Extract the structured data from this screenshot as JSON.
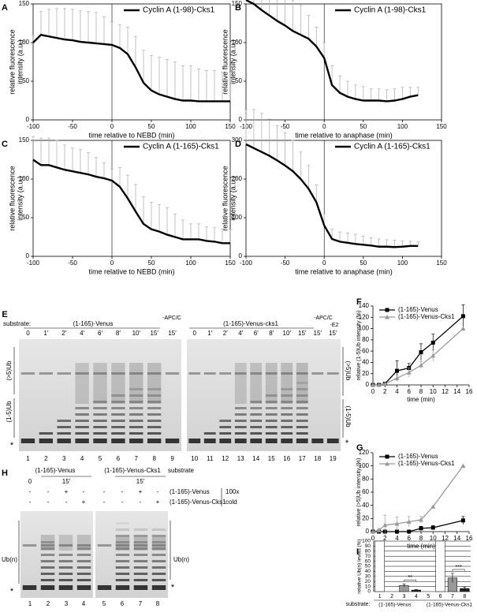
{
  "chart_data": [
    {
      "type": "line",
      "panel": "A",
      "x_label": "time relative to NEBD (min)",
      "y_label": [
        "relative fluorescence",
        "intensity (a.u.)"
      ],
      "xlim": [
        -100,
        150
      ],
      "ylim": [
        0,
        150
      ],
      "xticks": [
        -100,
        -50,
        0,
        50,
        100,
        150
      ],
      "yticks": [
        0,
        50,
        100,
        150
      ],
      "frame": true,
      "error_bars": "upper",
      "x": [
        -100,
        -90,
        -80,
        -70,
        -60,
        -50,
        -40,
        -30,
        -20,
        -10,
        0,
        10,
        20,
        30,
        40,
        50,
        60,
        70,
        80,
        90,
        100,
        110,
        120,
        130,
        140,
        150
      ],
      "series": [
        {
          "name": "Cyclin A (1-98)-Cks1",
          "color": "#000000",
          "values": [
            100,
            110,
            108,
            106,
            104,
            103,
            101,
            100,
            99,
            98,
            97,
            93,
            85,
            68,
            48,
            38,
            33,
            30,
            27,
            25,
            25,
            24,
            24,
            24,
            24,
            24
          ],
          "errors": [
            10,
            30,
            35,
            38,
            40,
            40,
            40,
            40,
            40,
            35,
            30,
            30,
            35,
            40,
            42,
            45,
            48,
            48,
            48,
            45,
            45,
            42,
            40,
            40,
            38,
            38
          ]
        }
      ]
    },
    {
      "type": "line",
      "panel": "B",
      "x_label": "time relative to anaphase (min)",
      "y_label": [
        "relative fluorescence",
        "intensity (a.u.)"
      ],
      "xlim": [
        -100,
        150
      ],
      "ylim": [
        0,
        150
      ],
      "xticks": [
        -100,
        -50,
        0,
        50,
        100,
        150
      ],
      "yticks": [
        0,
        50,
        100,
        150
      ],
      "frame": true,
      "error_bars": "upper",
      "x": [
        -100,
        -90,
        -80,
        -70,
        -60,
        -50,
        -40,
        -30,
        -20,
        -10,
        0,
        10,
        20,
        30,
        40,
        50,
        60,
        70,
        80,
        90,
        100,
        110,
        120
      ],
      "series": [
        {
          "name": "Cyclin A (1-98)-Cks1",
          "color": "#000000",
          "values": [
            155,
            150,
            142,
            135,
            128,
            122,
            115,
            110,
            105,
            95,
            80,
            45,
            35,
            30,
            27,
            25,
            25,
            25,
            24,
            25,
            27,
            30,
            32
          ],
          "errors": [
            40,
            45,
            45,
            45,
            42,
            40,
            40,
            38,
            30,
            25,
            20,
            25,
            22,
            20,
            18,
            18,
            15,
            15,
            15,
            15,
            15,
            12,
            10
          ]
        }
      ]
    },
    {
      "type": "line",
      "panel": "C",
      "x_label": "time relative to NEBD (min)",
      "y_label": [
        "relative fluorescence",
        "intensity (a.u.)"
      ],
      "xlim": [
        -100,
        150
      ],
      "ylim": [
        0,
        150
      ],
      "xticks": [
        -100,
        -50,
        0,
        50,
        100,
        150
      ],
      "yticks": [
        0,
        50,
        100,
        150
      ],
      "frame": true,
      "error_bars": "upper",
      "x": [
        -100,
        -90,
        -80,
        -70,
        -60,
        -50,
        -40,
        -30,
        -20,
        -10,
        0,
        10,
        20,
        30,
        40,
        50,
        60,
        70,
        80,
        90,
        100,
        110,
        120,
        130,
        140,
        150
      ],
      "series": [
        {
          "name": "Cyclin A (1-165)-Cks1",
          "color": "#000000",
          "values": [
            125,
            118,
            118,
            115,
            112,
            110,
            108,
            106,
            103,
            101,
            98,
            90,
            75,
            58,
            42,
            35,
            32,
            28,
            25,
            22,
            22,
            22,
            20,
            19,
            17,
            17
          ],
          "errors": [
            30,
            35,
            35,
            35,
            32,
            30,
            30,
            28,
            25,
            20,
            15,
            25,
            30,
            35,
            35,
            35,
            35,
            35,
            30,
            25,
            20,
            20,
            18,
            18,
            18,
            18
          ]
        }
      ]
    },
    {
      "type": "line",
      "panel": "D",
      "x_label": "time relative to anaphase (min)",
      "y_label": [
        "relative fluorescence",
        "intensity (a.u.)"
      ],
      "xlim": [
        -100,
        150
      ],
      "ylim": [
        0,
        300
      ],
      "xticks": [
        -100,
        -50,
        0,
        50,
        100,
        150
      ],
      "yticks": [
        0,
        100,
        200,
        300
      ],
      "frame": true,
      "error_bars": "upper",
      "x": [
        -100,
        -90,
        -80,
        -70,
        -60,
        -50,
        -40,
        -30,
        -20,
        -10,
        0,
        10,
        20,
        30,
        40,
        50,
        60,
        70,
        80,
        90,
        100,
        110,
        120
      ],
      "series": [
        {
          "name": "Cyclin A (1-165)-Cks1",
          "color": "#000000",
          "values": [
            290,
            280,
            270,
            260,
            248,
            235,
            220,
            200,
            175,
            140,
            80,
            45,
            38,
            35,
            32,
            30,
            28,
            25,
            25,
            24,
            25,
            27,
            27
          ],
          "errors": [
            90,
            100,
            100,
            95,
            90,
            85,
            80,
            70,
            60,
            45,
            30,
            25,
            25,
            25,
            25,
            22,
            20,
            20,
            18,
            18,
            15,
            12,
            10
          ]
        }
      ]
    },
    {
      "type": "line",
      "panel": "F",
      "x_label": "time (min)",
      "y_label": [
        "relative (1-5)Ub intensity (%)"
      ],
      "xlim": [
        0,
        16
      ],
      "ylim": [
        0,
        140
      ],
      "xticks": [
        0,
        2,
        4,
        6,
        8,
        10,
        12,
        14,
        16
      ],
      "yticks": [
        0,
        20,
        40,
        60,
        80,
        100,
        120,
        140
      ],
      "frame": false,
      "error_bars": "both",
      "x": [
        0,
        1,
        2,
        4,
        6,
        8,
        10,
        15
      ],
      "series": [
        {
          "name": "(1-165)-Venus",
          "color": "#000000",
          "marker": "square",
          "values": [
            0,
            0,
            2,
            25,
            30,
            58,
            75,
            122
          ],
          "errors": [
            0,
            0,
            2,
            18,
            8,
            15,
            15,
            20
          ]
        },
        {
          "name": "(1-165)-Venus-Cks1",
          "color": "#999999",
          "marker": "triangle",
          "values": [
            0,
            0,
            2,
            12,
            22,
            35,
            52,
            100
          ],
          "errors": [
            0,
            0,
            1,
            5,
            8,
            6,
            10,
            0
          ]
        }
      ]
    },
    {
      "type": "line",
      "panel": "G",
      "x_label": "time (min)",
      "y_label": [
        "relative (>5)Ub intensity (%)"
      ],
      "xlim": [
        0,
        16
      ],
      "ylim": [
        0,
        120
      ],
      "xticks": [
        0,
        2,
        4,
        6,
        8,
        10,
        12,
        14,
        16
      ],
      "yticks": [
        0,
        20,
        40,
        60,
        80,
        100,
        120
      ],
      "frame": false,
      "error_bars": "both",
      "x": [
        0,
        1,
        2,
        4,
        6,
        8,
        10,
        15
      ],
      "series": [
        {
          "name": "(1-165)-Venus",
          "color": "#000000",
          "marker": "square",
          "values": [
            0,
            0,
            0,
            0,
            0,
            5,
            6,
            17
          ],
          "errors": [
            0,
            0,
            0,
            0,
            0,
            3,
            3,
            6
          ]
        },
        {
          "name": "(1-165)-Venus-Cks1",
          "color": "#999999",
          "marker": "triangle",
          "values": [
            0,
            2,
            10,
            12,
            15,
            18,
            38,
            100
          ],
          "errors": [
            0,
            3,
            15,
            10,
            8,
            5,
            0,
            0
          ]
        }
      ]
    },
    {
      "type": "bar",
      "panel": "I",
      "y_label": [
        "relative Ub(n) levels (%)"
      ],
      "categories": [
        "1",
        "2",
        "3",
        "4",
        "5",
        "6",
        "7",
        "8"
      ],
      "values": [
        100,
        0,
        12,
        3,
        0,
        100,
        27,
        6
      ],
      "errors": [
        0,
        0,
        3,
        1,
        0,
        0,
        9,
        3
      ],
      "colors": [
        "#ffffff",
        "#ffffff",
        "#999999",
        "#222222",
        "#ffffff",
        "#ffffff",
        "#999999",
        "#222222"
      ],
      "ylim": [
        0,
        100
      ],
      "yticks": [
        0,
        10,
        20,
        30,
        40,
        50,
        60,
        70,
        80,
        90,
        100
      ],
      "grid": true,
      "annotations": [
        "**",
        "***"
      ],
      "substrate_label": "substrate:",
      "group_labels": [
        "(1-165)-Venus",
        "(1-165)-Venus-Cks1"
      ]
    }
  ],
  "gel_E": {
    "panel": "E",
    "substrate_label": "substrate:",
    "groups": [
      "(1-165)-Venus",
      "(1-165)-Venus-cks1"
    ],
    "times": [
      "0",
      "1′",
      "2′",
      "4′",
      "6′",
      "8′",
      "10′",
      "15′",
      "15′",
      "0",
      "1′",
      "2′",
      "4′",
      "6′",
      "8′",
      "10′",
      "15′",
      "15′",
      "15′"
    ],
    "controls": [
      "-APC/C",
      "-APC/C",
      "-E2"
    ],
    "side_labels": [
      "(>5)Ub",
      "(1-5)Ub",
      "*"
    ],
    "lanes": [
      "1",
      "2",
      "3",
      "4",
      "5",
      "6",
      "7",
      "8",
      "9",
      "10",
      "11",
      "12",
      "13",
      "14",
      "15",
      "16",
      "17",
      "18",
      "19"
    ]
  },
  "gel_H": {
    "panel": "H",
    "groups": [
      "(1-165)-Venus",
      "(1-165)-Venus-Cks1"
    ],
    "substrate_label": "substrate",
    "times": [
      "0",
      "15′",
      "15′"
    ],
    "competitors": [
      "(1-165)-Venus",
      "(1-165)-Venus-Cks1"
    ],
    "competitor_note": [
      "100x",
      "cold"
    ],
    "rows": [
      [
        "-",
        "-",
        "+",
        "-",
        "-",
        "-",
        "+",
        "-"
      ],
      [
        "-",
        "-",
        "-",
        "+",
        "-",
        "-",
        "-",
        "+"
      ]
    ],
    "side_labels": [
      "Ub(n)",
      "*",
      "Ub(n)",
      "*"
    ],
    "lanes": [
      "1",
      "2",
      "3",
      "4",
      "5",
      "6",
      "7",
      "8"
    ]
  }
}
